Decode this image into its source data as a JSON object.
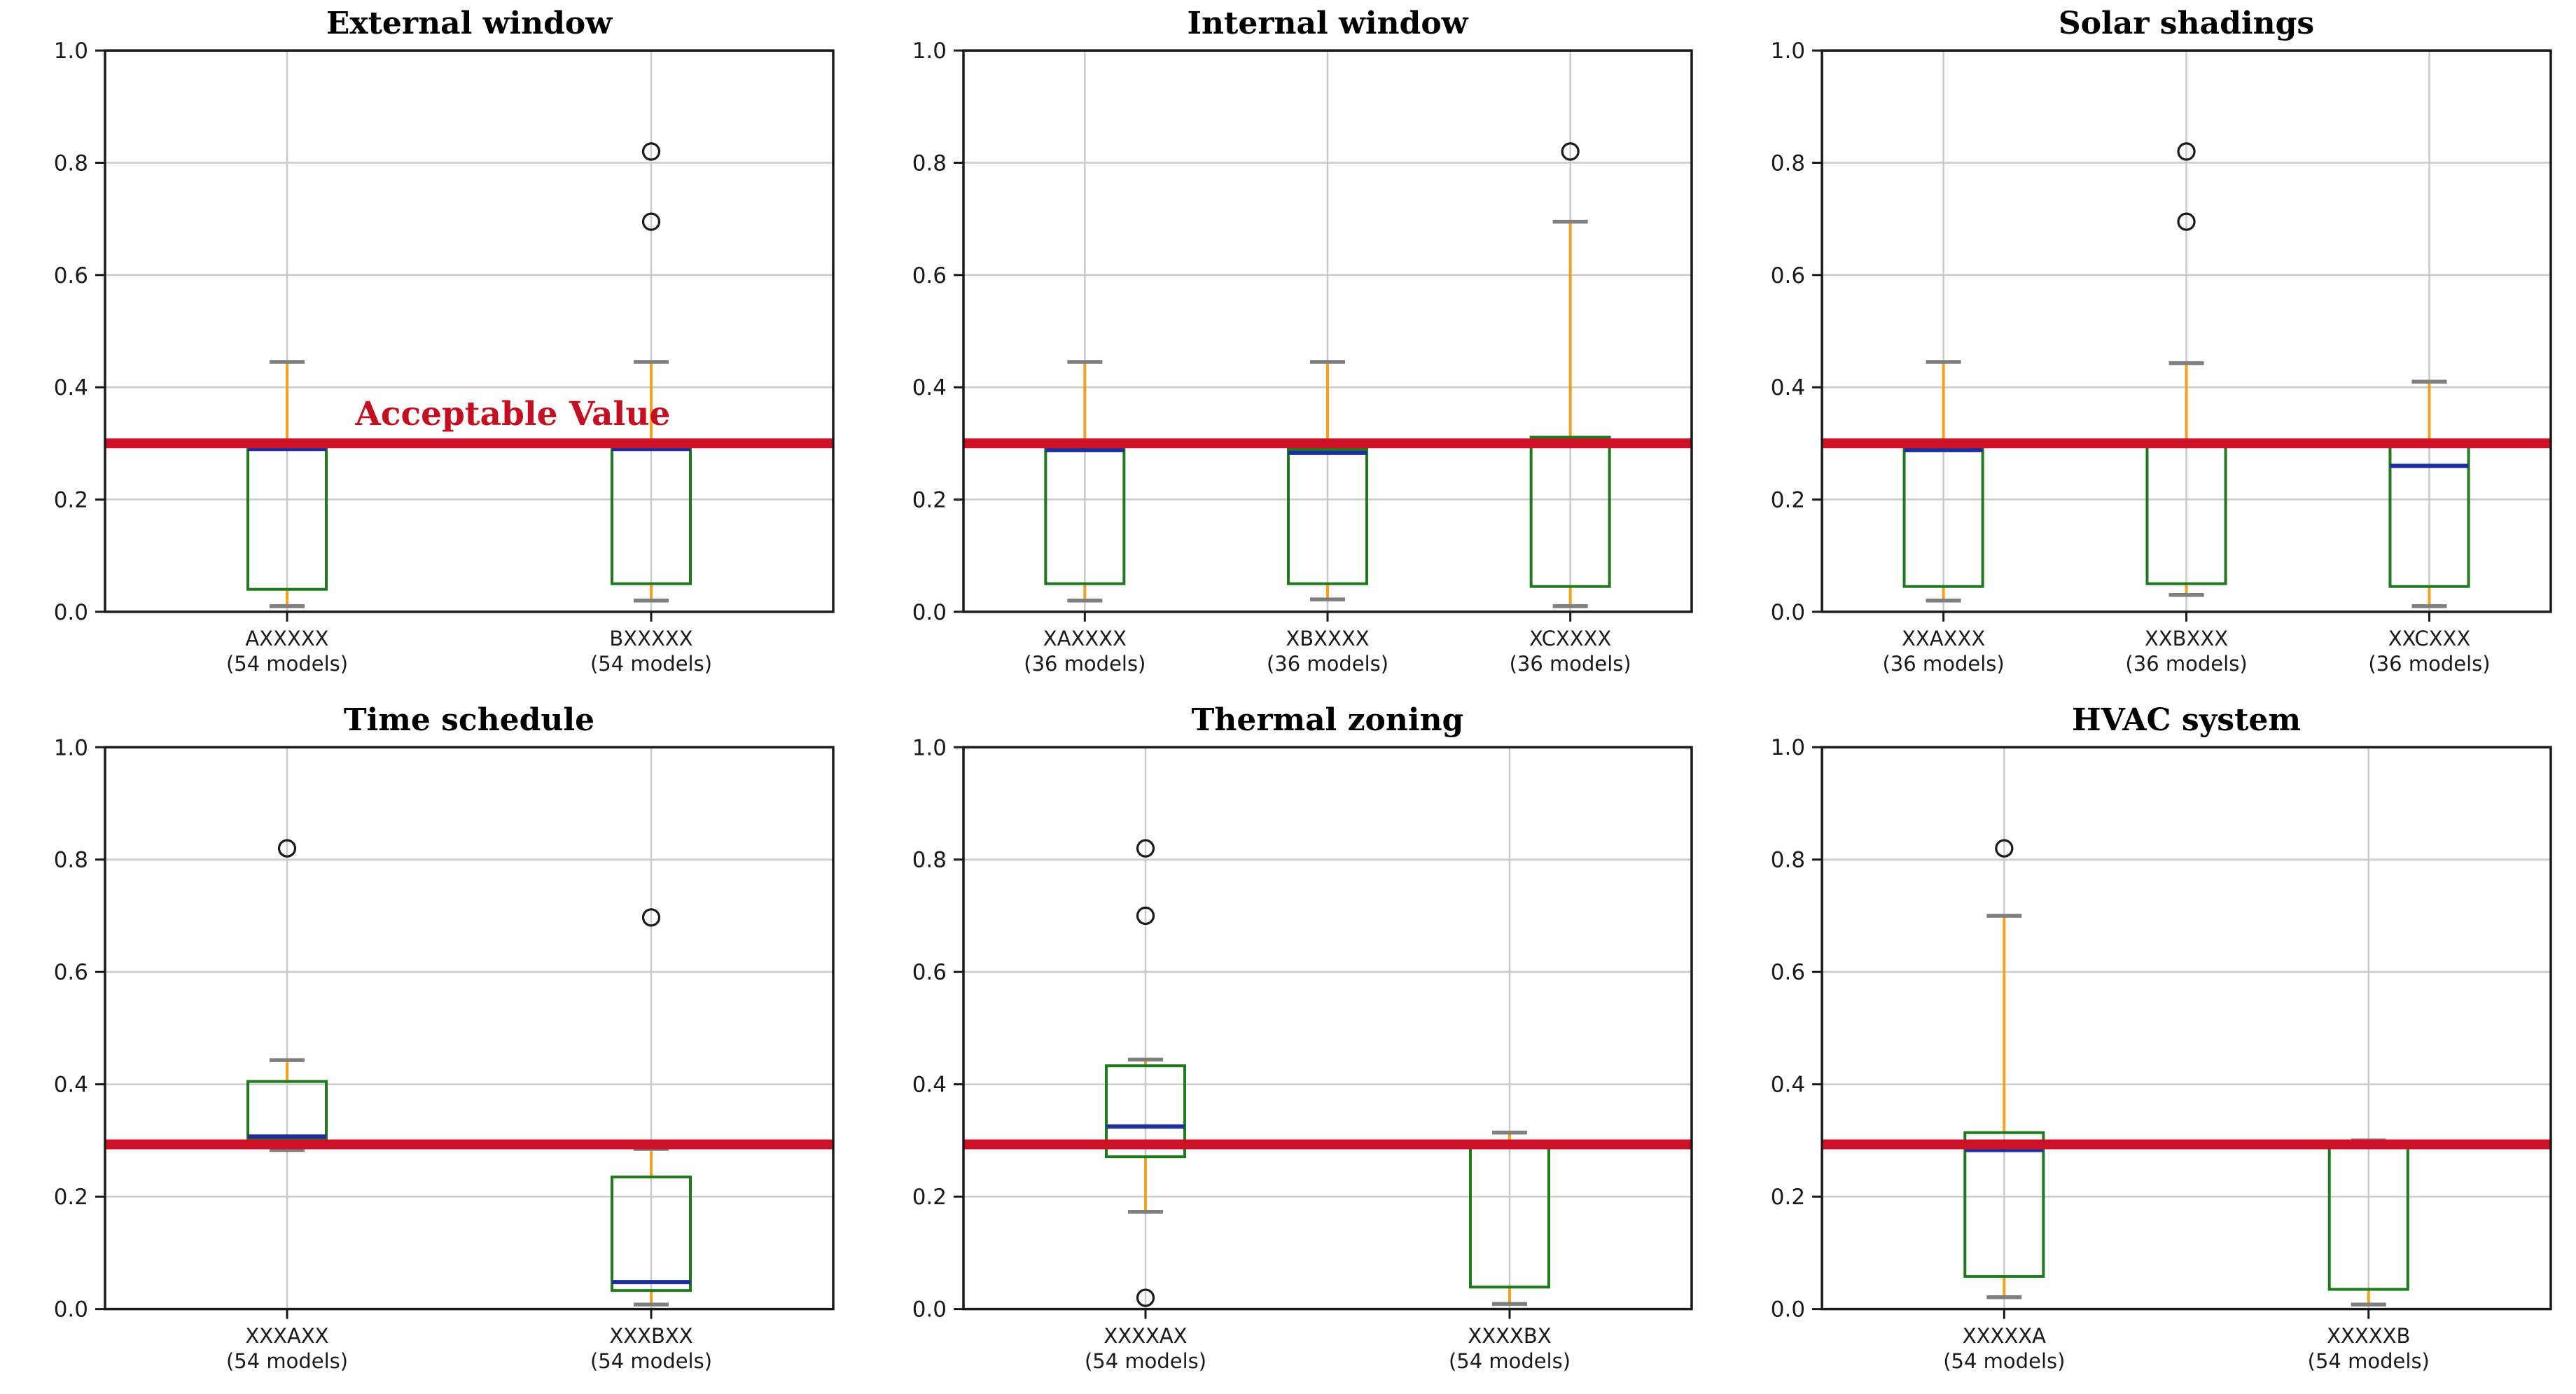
{
  "figure": {
    "background": "#ffffff",
    "rows": 2,
    "cols": 3
  },
  "style": {
    "box_color": "#1f7a1f",
    "median_color": "#1f2e9e",
    "whisker_color": "#f5a01e",
    "cap_color": "#7f7f7f",
    "outlier_color": "#1a1a1a",
    "grid_color": "#c9c9c9",
    "spine_color": "#1a1a1a",
    "tick_label_color": "#1a1a1a",
    "title_color": "#000000",
    "acceptable_line_color": "#ce1126",
    "annotation_color": "#c40e22"
  },
  "chart_data": [
    {
      "type": "box",
      "title": "External window",
      "ylim": [
        0,
        1
      ],
      "yticks": [
        "0.0",
        "0.2",
        "0.4",
        "0.6",
        "0.8",
        "1.0"
      ],
      "grid": true,
      "acceptable_value": 0.3,
      "annotation": {
        "text": "Acceptable Value"
      },
      "categories": [
        "AXXXXX",
        "BXXXXX"
      ],
      "counts": [
        "(54 models)",
        "(54 models)"
      ],
      "boxes": [
        {
          "q1": 0.04,
          "median": 0.29,
          "q3": 0.296,
          "whisker_low": 0.01,
          "whisker_high": 0.445,
          "outliers": []
        },
        {
          "q1": 0.05,
          "median": 0.29,
          "q3": 0.296,
          "whisker_low": 0.02,
          "whisker_high": 0.445,
          "outliers": [
            0.695,
            0.82
          ]
        }
      ]
    },
    {
      "type": "box",
      "title": "Internal window",
      "ylim": [
        0,
        1
      ],
      "yticks": [
        "0.0",
        "0.2",
        "0.4",
        "0.6",
        "0.8",
        "1.0"
      ],
      "grid": true,
      "acceptable_value": 0.3,
      "annotation": null,
      "categories": [
        "XAXXXX",
        "XBXXXX",
        "XCXXXX"
      ],
      "counts": [
        "(36 models)",
        "(36 models)",
        "(36 models)"
      ],
      "boxes": [
        {
          "q1": 0.05,
          "median": 0.288,
          "q3": 0.293,
          "whisker_low": 0.02,
          "whisker_high": 0.445,
          "outliers": []
        },
        {
          "q1": 0.05,
          "median": 0.283,
          "q3": 0.289,
          "whisker_low": 0.022,
          "whisker_high": 0.445,
          "outliers": []
        },
        {
          "q1": 0.045,
          "median": 0.3,
          "q3": 0.311,
          "whisker_low": 0.01,
          "whisker_high": 0.695,
          "outliers": [
            0.82
          ]
        }
      ]
    },
    {
      "type": "box",
      "title": "Solar shadings",
      "ylim": [
        0,
        1
      ],
      "yticks": [
        "0.0",
        "0.2",
        "0.4",
        "0.6",
        "0.8",
        "1.0"
      ],
      "grid": true,
      "acceptable_value": 0.3,
      "annotation": null,
      "categories": [
        "XXAXXX",
        "XXBXXX",
        "XXCXXX"
      ],
      "counts": [
        "(36 models)",
        "(36 models)",
        "(36 models)"
      ],
      "boxes": [
        {
          "q1": 0.045,
          "median": 0.288,
          "q3": 0.294,
          "whisker_low": 0.02,
          "whisker_high": 0.445,
          "outliers": []
        },
        {
          "q1": 0.05,
          "median": 0.297,
          "q3": 0.301,
          "whisker_low": 0.03,
          "whisker_high": 0.443,
          "outliers": [
            0.695,
            0.82
          ]
        },
        {
          "q1": 0.045,
          "median": 0.26,
          "q3": 0.295,
          "whisker_low": 0.01,
          "whisker_high": 0.41,
          "outliers": []
        }
      ]
    },
    {
      "type": "box",
      "title": "Time schedule",
      "ylim": [
        0,
        1
      ],
      "yticks": [
        "0.0",
        "0.2",
        "0.4",
        "0.6",
        "0.8",
        "1.0"
      ],
      "grid": true,
      "acceptable_value": 0.293,
      "annotation": null,
      "categories": [
        "XXXAXX",
        "XXXBXX"
      ],
      "counts": [
        "(54 models)",
        "(54 models)"
      ],
      "boxes": [
        {
          "q1": 0.304,
          "median": 0.307,
          "q3": 0.405,
          "whisker_low": 0.283,
          "whisker_high": 0.443,
          "outliers": [
            0.82
          ]
        },
        {
          "q1": 0.033,
          "median": 0.048,
          "q3": 0.235,
          "whisker_low": 0.008,
          "whisker_high": 0.285,
          "outliers": [
            0.697
          ]
        }
      ]
    },
    {
      "type": "box",
      "title": "Thermal zoning",
      "ylim": [
        0,
        1
      ],
      "yticks": [
        "0.0",
        "0.2",
        "0.4",
        "0.6",
        "0.8",
        "1.0"
      ],
      "grid": true,
      "acceptable_value": 0.293,
      "annotation": null,
      "categories": [
        "XXXXAX",
        "XXXXBX"
      ],
      "counts": [
        "(54 models)",
        "(54 models)"
      ],
      "boxes": [
        {
          "q1": 0.271,
          "median": 0.325,
          "q3": 0.433,
          "whisker_low": 0.173,
          "whisker_high": 0.444,
          "outliers": [
            0.7,
            0.82,
            0.02
          ]
        },
        {
          "q1": 0.039,
          "median": 0.294,
          "q3": 0.297,
          "whisker_low": 0.009,
          "whisker_high": 0.314,
          "outliers": []
        }
      ]
    },
    {
      "type": "box",
      "title": "HVAC system",
      "ylim": [
        0,
        1
      ],
      "yticks": [
        "0.0",
        "0.2",
        "0.4",
        "0.6",
        "0.8",
        "1.0"
      ],
      "grid": true,
      "acceptable_value": 0.293,
      "annotation": null,
      "categories": [
        "XXXXXA",
        "XXXXXB"
      ],
      "counts": [
        "(54 models)",
        "(54 models)"
      ],
      "boxes": [
        {
          "q1": 0.058,
          "median": 0.283,
          "q3": 0.314,
          "whisker_low": 0.021,
          "whisker_high": 0.7,
          "outliers": [
            0.82
          ]
        },
        {
          "q1": 0.035,
          "median": 0.293,
          "q3": 0.296,
          "whisker_low": 0.008,
          "whisker_high": 0.3,
          "outliers": []
        }
      ]
    }
  ]
}
